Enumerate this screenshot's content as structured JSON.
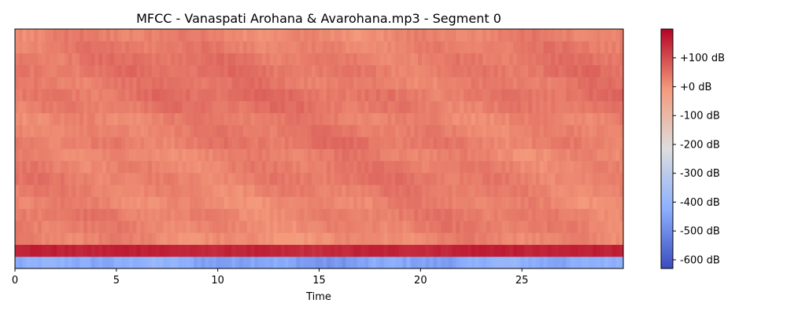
{
  "chart_data": {
    "type": "heatmap",
    "title": "MFCC - Vanaspati Arohana & Avarohana.mp3 - Segment 0",
    "xlabel": "Time",
    "ylabel": "",
    "xlim": [
      0,
      30
    ],
    "x_ticks": [
      0,
      5,
      10,
      15,
      20,
      25
    ],
    "x_tick_labels": [
      "0",
      "5",
      "10",
      "15",
      "20",
      "25"
    ],
    "n_coefficients": 20,
    "colormap": "coolwarm",
    "colorbar": {
      "range": [
        -630,
        200
      ],
      "ticks": [
        100,
        0,
        -100,
        -200,
        -300,
        -400,
        -500,
        -600
      ],
      "tick_labels": [
        "+100 dB",
        "+0 dB",
        "-100 dB",
        "-200 dB",
        "-300 dB",
        "-400 dB",
        "-500 dB",
        "-600 dB"
      ]
    },
    "row_levels_db": [
      -440,
      155,
      15,
      25,
      30,
      20,
      28,
      35,
      30,
      25,
      38,
      32,
      28,
      40,
      45,
      35,
      42,
      38,
      30,
      22
    ],
    "colors": {
      "low": "#3b4cc0",
      "mid": "#dddddd",
      "high": "#b40426"
    }
  }
}
